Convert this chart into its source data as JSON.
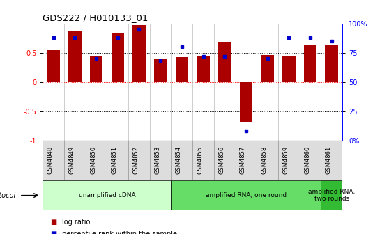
{
  "title": "GDS222 / H010133_01",
  "samples": [
    "GSM4848",
    "GSM4849",
    "GSM4850",
    "GSM4851",
    "GSM4852",
    "GSM4853",
    "GSM4854",
    "GSM4855",
    "GSM4856",
    "GSM4857",
    "GSM4858",
    "GSM4859",
    "GSM4860",
    "GSM4861"
  ],
  "log_ratio": [
    0.54,
    0.88,
    0.44,
    0.83,
    0.97,
    0.39,
    0.42,
    0.44,
    0.69,
    -0.68,
    0.46,
    0.45,
    0.63,
    0.63
  ],
  "percentile": [
    88,
    88,
    70,
    88,
    95,
    68,
    80,
    72,
    72,
    8,
    70,
    88,
    88,
    85
  ],
  "bar_color": "#AA0000",
  "dot_color": "#0000CC",
  "ylim_left": [
    -1,
    1
  ],
  "ylim_right": [
    0,
    100
  ],
  "yticks_left": [
    -1,
    -0.5,
    0,
    0.5
  ],
  "ytick_labels_left": [
    "-1",
    "-0.5",
    "0",
    "0.5"
  ],
  "yticks_right": [
    0,
    25,
    50,
    75,
    100
  ],
  "ytick_labels_right": [
    "0%",
    "25",
    "50",
    "75",
    "100%"
  ],
  "hlines_black": [
    0.5,
    -0.5
  ],
  "hline_red": 0,
  "protocols": [
    {
      "label": "unamplified cDNA",
      "start": 0,
      "end": 5,
      "color": "#CCFFCC"
    },
    {
      "label": "amplified RNA, one round",
      "start": 6,
      "end": 12,
      "color": "#66DD66"
    },
    {
      "label": "amplified RNA,\ntwo rounds",
      "start": 13,
      "end": 13,
      "color": "#33BB33"
    }
  ],
  "legend_items": [
    {
      "color": "#AA0000",
      "label": "log ratio"
    },
    {
      "color": "#0000CC",
      "label": "percentile rank within the sample"
    }
  ],
  "protocol_label": "protocol",
  "background_color": "#FFFFFF",
  "sample_box_color": "#DDDDDD",
  "sample_box_edge": "#999999"
}
